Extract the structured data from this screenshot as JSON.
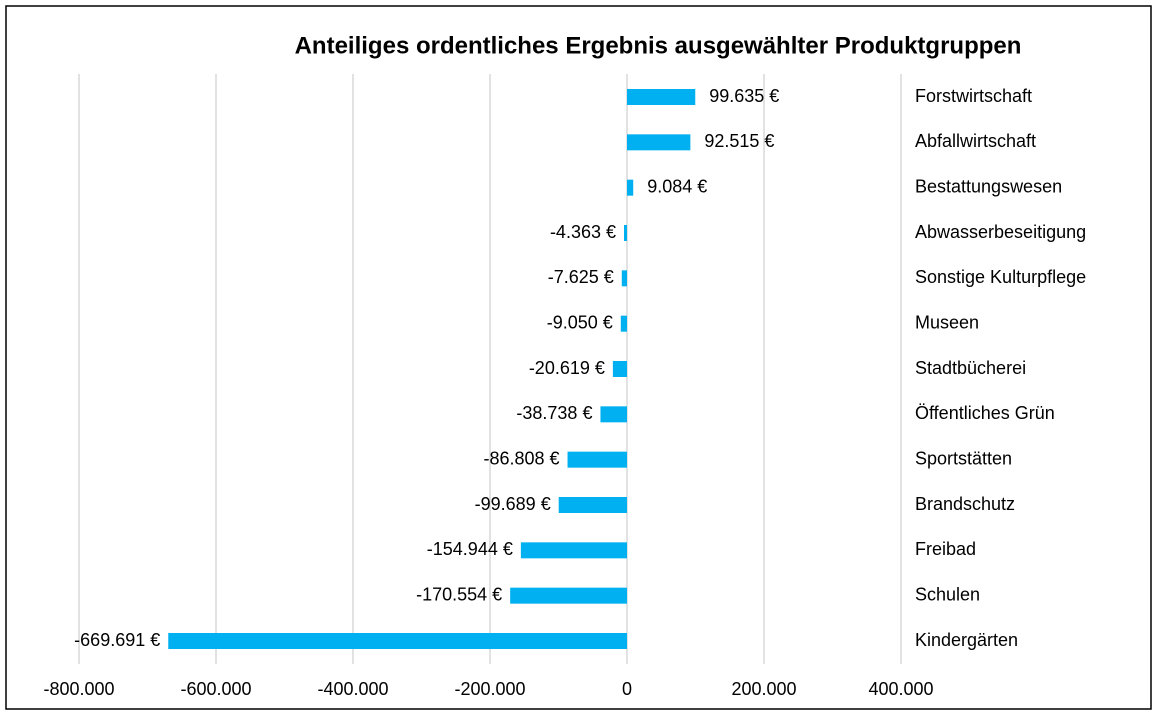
{
  "chart_data": {
    "type": "bar",
    "orientation": "horizontal",
    "title": "Anteiliges ordentliches Ergebnis ausgewählter Produktgruppen",
    "categories": [
      "Forstwirtschaft",
      "Abfallwirtschaft",
      "Bestattungswesen",
      "Abwasserbeseitigung",
      "Sonstige Kulturpflege",
      "Museen",
      "Stadtbücherei",
      "Öffentliches Grün",
      "Sportstätten",
      "Brandschutz",
      "Freibad",
      "Schulen",
      "Kindergärten"
    ],
    "values": [
      99635,
      92515,
      9084,
      -4363,
      -7625,
      -9050,
      -20619,
      -38738,
      -86808,
      -99689,
      -154944,
      -170554,
      -669691
    ],
    "value_labels": [
      "99.635 €",
      "92.515 €",
      "9.084 €",
      "-4.363 €",
      "-7.625 €",
      "-9.050 €",
      "-20.619 €",
      "-38.738 €",
      "-86.808 €",
      "-99.689 €",
      "-154.944 €",
      "-170.554 €",
      "-669.691 €"
    ],
    "color": "#00b0f0",
    "xlim": [
      -800000,
      400000
    ],
    "xticks": [
      {
        "value": -800000,
        "label": "-800.000"
      },
      {
        "value": -600000,
        "label": "-600.000"
      },
      {
        "value": -400000,
        "label": "-400.000"
      },
      {
        "value": -200000,
        "label": "-200.000"
      },
      0,
      {
        "value": 200000,
        "label": "200.000"
      },
      {
        "value": 400000,
        "label": "400.000"
      }
    ],
    "grid": true
  }
}
